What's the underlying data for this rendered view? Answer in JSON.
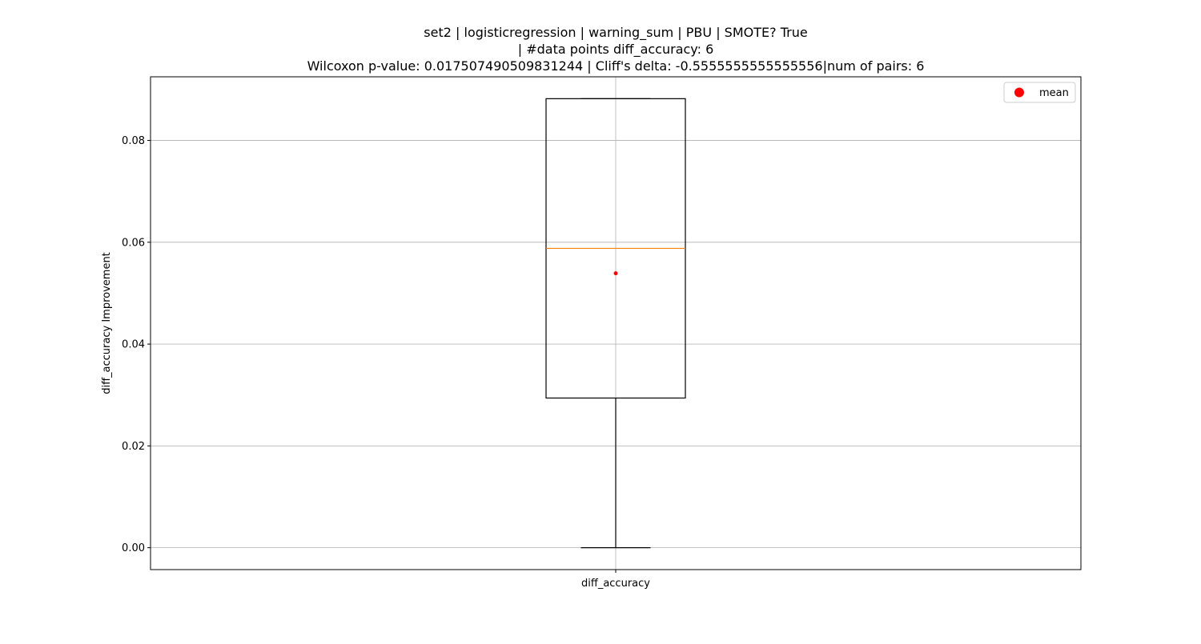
{
  "chart_data": {
    "type": "boxplot",
    "title_lines": [
      "set2 | logisticregression | warning_sum | PBU | SMOTE? True",
      "| #data points diff_accuracy: 6",
      "Wilcoxon p-value: 0.017507490509831244 | Cliff's delta: -0.5555555555555556|num of pairs: 6"
    ],
    "xlabel": "",
    "ylabel": "diff_accuracy Improvement",
    "categories": [
      "diff_accuracy"
    ],
    "boxes": [
      {
        "category": "diff_accuracy",
        "whisker_low": 0.0,
        "q1": 0.0294,
        "median": 0.0588,
        "q3": 0.0882,
        "whisker_high": 0.0882,
        "mean": 0.0539
      }
    ],
    "ylim": [
      -0.0043,
      0.0925
    ],
    "yticks": [
      0.0,
      0.02,
      0.04,
      0.06,
      0.08
    ],
    "ytick_labels": [
      "0.00",
      "0.02",
      "0.04",
      "0.06",
      "0.08"
    ],
    "grid": true,
    "legend": {
      "position": "top-right",
      "entries": [
        {
          "label": "mean",
          "marker": "red-dot"
        }
      ]
    },
    "colors": {
      "box": "#000000",
      "median": "#ff7f0e",
      "mean": "#ff0000",
      "grid": "#b0b0b0"
    }
  }
}
